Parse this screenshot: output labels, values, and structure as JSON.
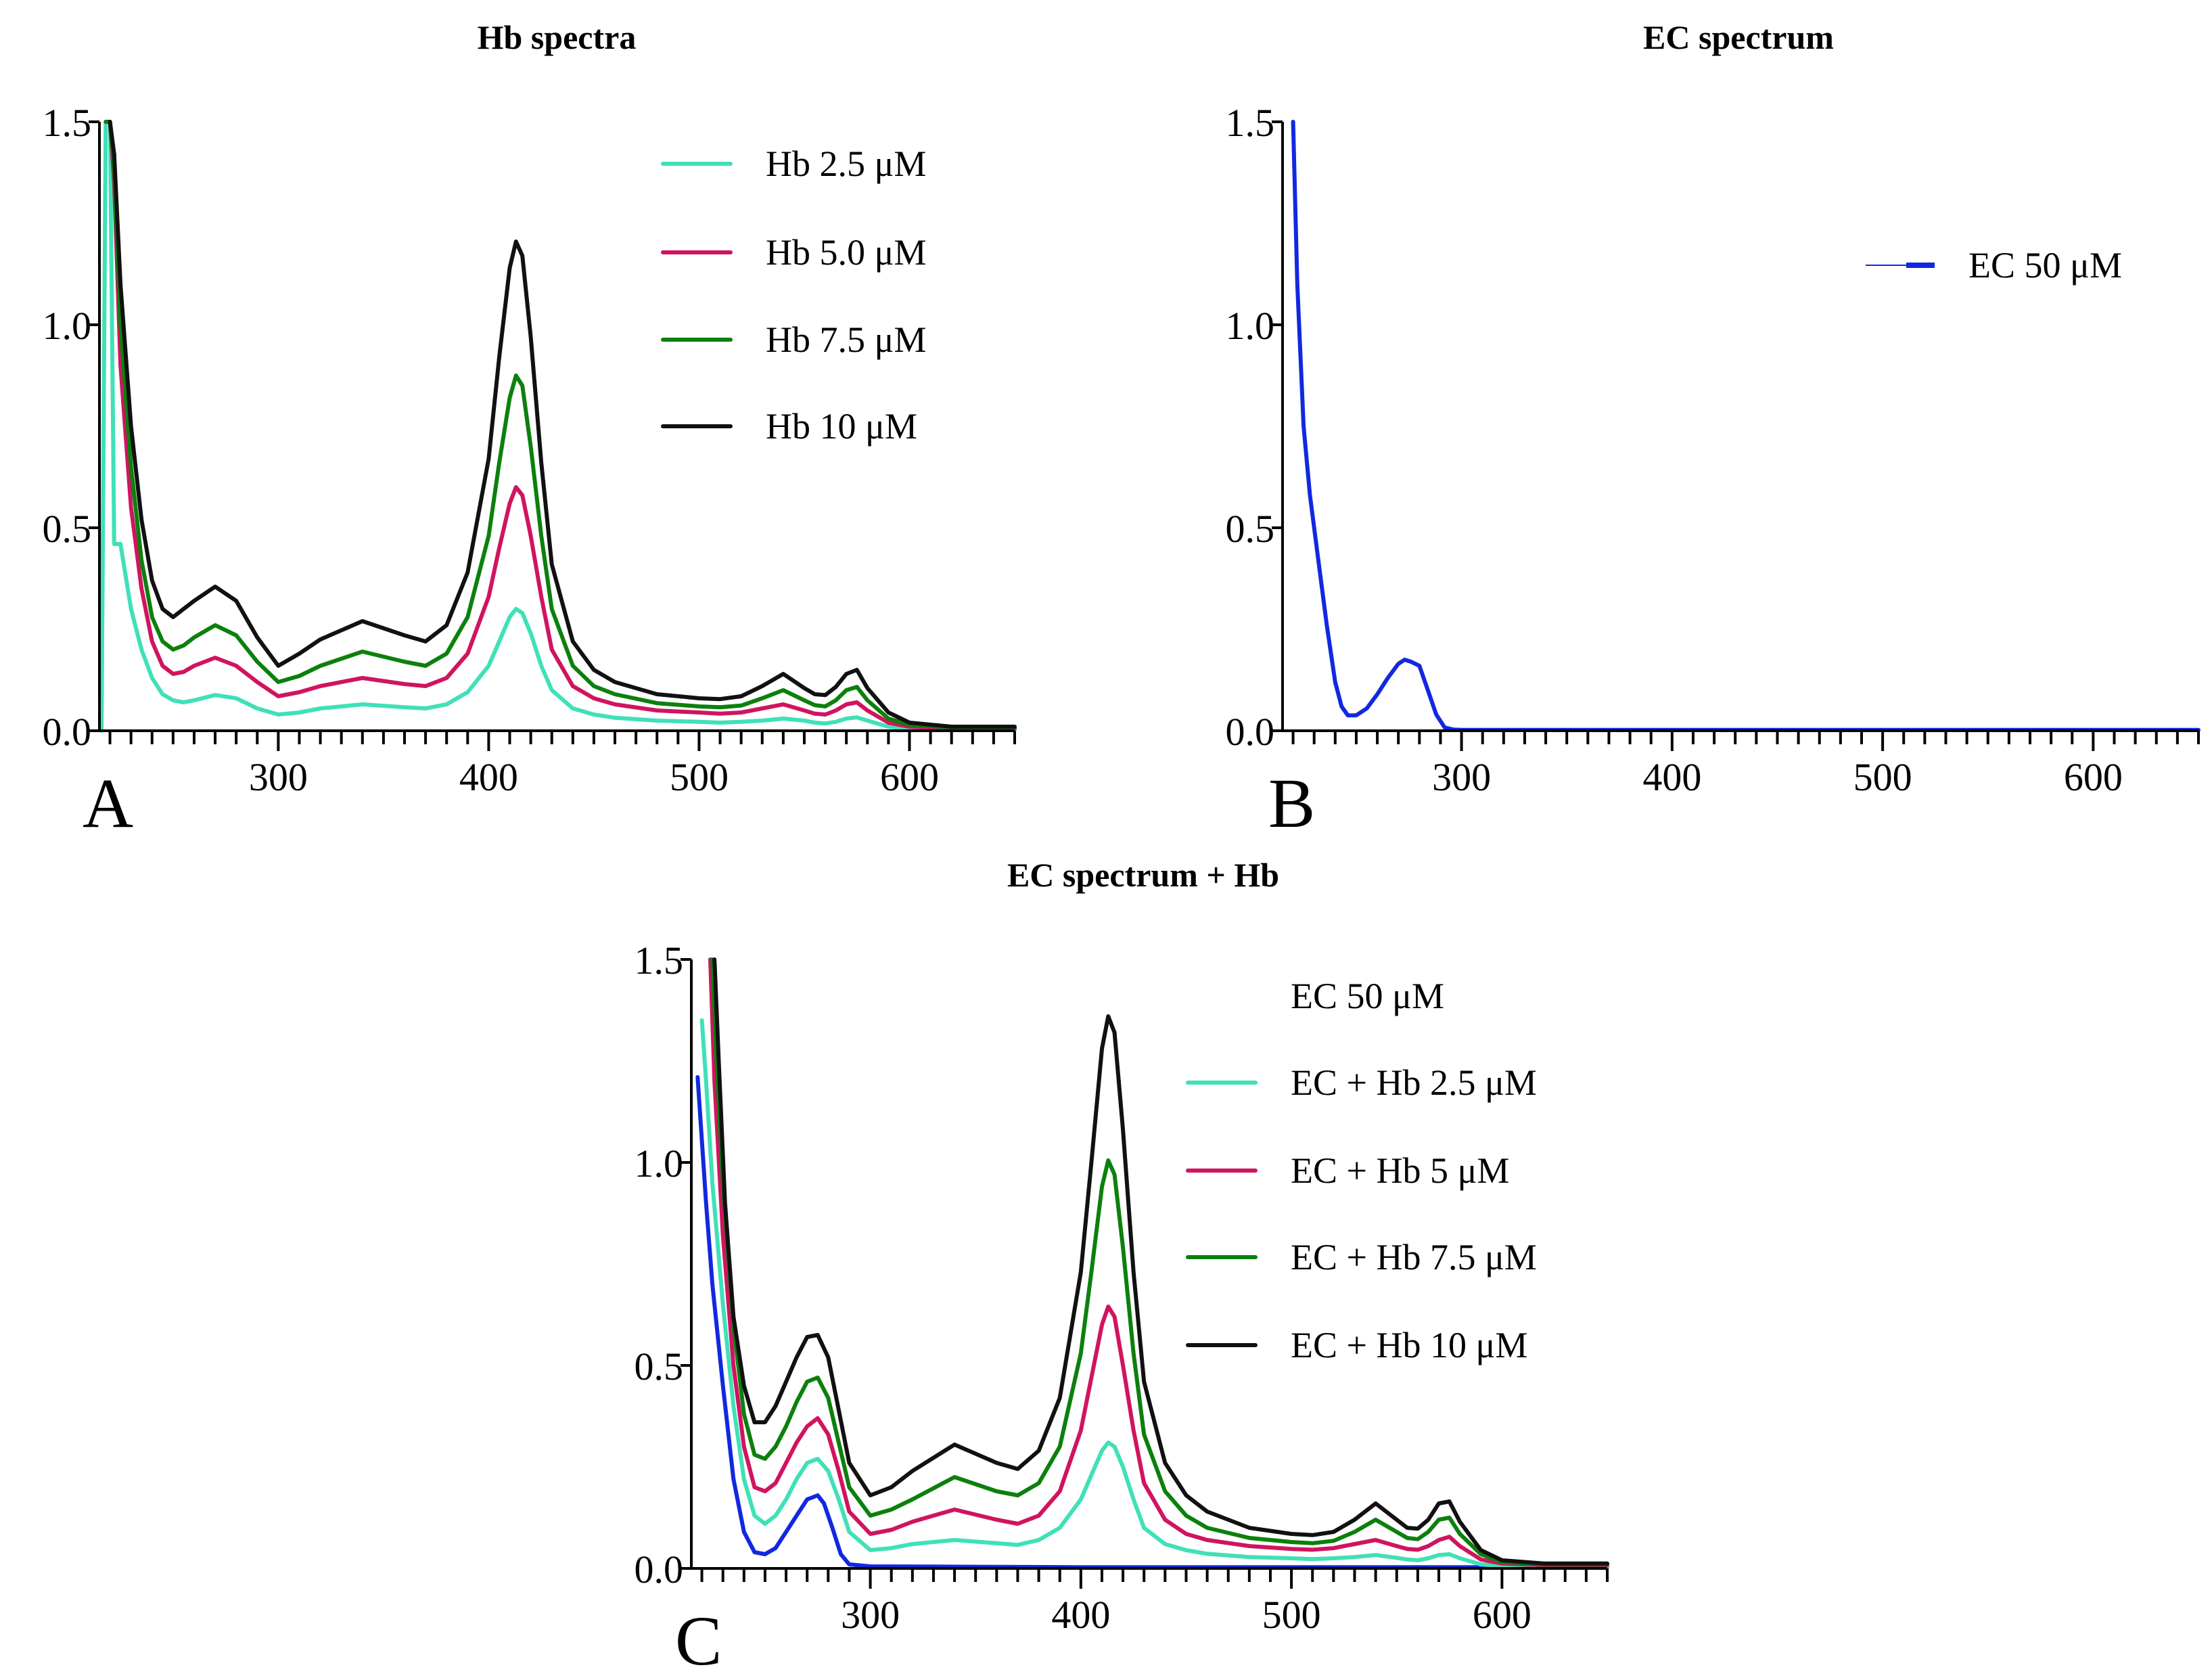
{
  "chart_data": [
    {
      "type": "line",
      "panel_label": "A",
      "title": "Hb spectra",
      "xlabel": "",
      "ylabel": "",
      "xlim": [
        215,
        650
      ],
      "ylim": [
        0,
        1.5
      ],
      "x_ticks": [
        300,
        400,
        500,
        600
      ],
      "y_ticks": [
        0.0,
        0.5,
        1.0,
        1.5
      ],
      "y_tick_labels": [
        "0.0",
        "0.5",
        "1.0",
        "1.5"
      ],
      "legend_position": "top-right",
      "series": [
        {
          "name": "Hb 2.5 μM",
          "color": "#40e0b8",
          "x": [
            216,
            218,
            220,
            222,
            225,
            230,
            235,
            240,
            245,
            250,
            255,
            260,
            270,
            280,
            290,
            300,
            310,
            320,
            340,
            360,
            370,
            380,
            390,
            400,
            405,
            410,
            413,
            416,
            420,
            425,
            430,
            440,
            450,
            460,
            480,
            500,
            510,
            520,
            530,
            540,
            550,
            555,
            560,
            565,
            570,
            575,
            580,
            590,
            600,
            620,
            650
          ],
          "y": [
            0.0,
            1.5,
            1.5,
            0.46,
            0.46,
            0.3,
            0.2,
            0.13,
            0.09,
            0.075,
            0.07,
            0.075,
            0.088,
            0.08,
            0.055,
            0.04,
            0.045,
            0.055,
            0.065,
            0.058,
            0.055,
            0.065,
            0.095,
            0.16,
            0.22,
            0.28,
            0.3,
            0.29,
            0.24,
            0.16,
            0.1,
            0.055,
            0.04,
            0.032,
            0.025,
            0.022,
            0.02,
            0.022,
            0.025,
            0.03,
            0.025,
            0.02,
            0.018,
            0.022,
            0.03,
            0.033,
            0.025,
            0.01,
            0.005,
            0.003,
            0.003
          ]
        },
        {
          "name": "Hb 5.0  μM",
          "color": "#d0145f",
          "x": [
            218,
            220,
            222,
            225,
            230,
            235,
            240,
            245,
            250,
            255,
            260,
            270,
            280,
            290,
            300,
            310,
            320,
            340,
            360,
            370,
            380,
            390,
            400,
            405,
            410,
            413,
            416,
            420,
            425,
            430,
            440,
            450,
            460,
            480,
            500,
            510,
            520,
            530,
            540,
            550,
            555,
            560,
            565,
            570,
            575,
            580,
            590,
            600,
            620,
            650
          ],
          "y": [
            1.5,
            1.5,
            1.35,
            0.9,
            0.55,
            0.35,
            0.22,
            0.16,
            0.14,
            0.145,
            0.16,
            0.18,
            0.16,
            0.12,
            0.085,
            0.095,
            0.11,
            0.13,
            0.115,
            0.11,
            0.13,
            0.19,
            0.33,
            0.45,
            0.56,
            0.6,
            0.58,
            0.48,
            0.33,
            0.2,
            0.11,
            0.08,
            0.065,
            0.05,
            0.045,
            0.042,
            0.045,
            0.055,
            0.065,
            0.05,
            0.042,
            0.04,
            0.05,
            0.065,
            0.07,
            0.05,
            0.02,
            0.01,
            0.005,
            0.005
          ]
        },
        {
          "name": "Hb 7.5  μM",
          "color": "#0c800c",
          "x": [
            218,
            220,
            222,
            225,
            230,
            235,
            240,
            245,
            250,
            255,
            260,
            270,
            280,
            290,
            300,
            310,
            320,
            340,
            360,
            370,
            380,
            390,
            400,
            405,
            410,
            413,
            416,
            420,
            425,
            430,
            440,
            450,
            460,
            480,
            500,
            510,
            520,
            530,
            540,
            550,
            555,
            560,
            565,
            570,
            575,
            580,
            590,
            600,
            620,
            650
          ],
          "y": [
            1.5,
            1.5,
            1.38,
            1.0,
            0.65,
            0.42,
            0.28,
            0.22,
            0.2,
            0.21,
            0.23,
            0.26,
            0.235,
            0.17,
            0.12,
            0.135,
            0.16,
            0.195,
            0.17,
            0.16,
            0.19,
            0.28,
            0.48,
            0.66,
            0.82,
            0.875,
            0.85,
            0.7,
            0.48,
            0.3,
            0.16,
            0.11,
            0.09,
            0.068,
            0.06,
            0.058,
            0.062,
            0.08,
            0.1,
            0.075,
            0.063,
            0.06,
            0.075,
            0.1,
            0.108,
            0.075,
            0.03,
            0.015,
            0.008,
            0.008
          ]
        },
        {
          "name": "Hb 10  μM",
          "color": "#111111",
          "x": [
            220,
            222,
            225,
            230,
            235,
            240,
            245,
            250,
            255,
            260,
            270,
            280,
            290,
            300,
            310,
            320,
            340,
            360,
            370,
            380,
            390,
            400,
            405,
            410,
            413,
            416,
            420,
            425,
            430,
            440,
            450,
            460,
            480,
            500,
            510,
            520,
            530,
            540,
            550,
            555,
            560,
            565,
            570,
            575,
            580,
            590,
            600,
            620,
            650
          ],
          "y": [
            1.5,
            1.42,
            1.1,
            0.75,
            0.52,
            0.37,
            0.3,
            0.28,
            0.3,
            0.32,
            0.355,
            0.32,
            0.23,
            0.16,
            0.19,
            0.225,
            0.27,
            0.235,
            0.22,
            0.26,
            0.39,
            0.67,
            0.92,
            1.14,
            1.205,
            1.17,
            0.97,
            0.66,
            0.41,
            0.22,
            0.15,
            0.12,
            0.09,
            0.08,
            0.078,
            0.085,
            0.11,
            0.14,
            0.105,
            0.09,
            0.088,
            0.108,
            0.14,
            0.15,
            0.105,
            0.045,
            0.02,
            0.01,
            0.01
          ]
        }
      ]
    },
    {
      "type": "line",
      "panel_label": "B",
      "title": "EC spectrum",
      "xlabel": "",
      "ylabel": "",
      "xlim": [
        215,
        650
      ],
      "ylim": [
        0,
        1.5
      ],
      "x_ticks": [
        300,
        400,
        500,
        600
      ],
      "y_ticks": [
        0.0,
        0.5,
        1.0,
        1.5
      ],
      "y_tick_labels": [
        "0.0",
        "0.5",
        "1.0",
        "1.5"
      ],
      "legend_position": "top-right",
      "series": [
        {
          "name": "EC 50 μM",
          "color": "#1228e0",
          "x": [
            220,
            222,
            225,
            228,
            232,
            236,
            240,
            243,
            246,
            250,
            255,
            260,
            265,
            270,
            273,
            276,
            280,
            284,
            288,
            292,
            296,
            300,
            350,
            400,
            450,
            500,
            550,
            600,
            650
          ],
          "y": [
            1.5,
            1.1,
            0.75,
            0.58,
            0.42,
            0.26,
            0.12,
            0.06,
            0.038,
            0.038,
            0.055,
            0.09,
            0.13,
            0.165,
            0.175,
            0.17,
            0.16,
            0.1,
            0.04,
            0.008,
            0.003,
            0.002,
            0.002,
            0.002,
            0.002,
            0.002,
            0.002,
            0.002,
            0.002
          ]
        }
      ]
    },
    {
      "type": "line",
      "panel_label": "C",
      "title": "EC spectrum + Hb",
      "xlabel": "",
      "ylabel": "",
      "xlim": [
        215,
        650
      ],
      "ylim": [
        0,
        1.5
      ],
      "x_ticks": [
        300,
        400,
        500,
        600
      ],
      "y_ticks": [
        0.0,
        0.5,
        1.0,
        1.5
      ],
      "y_tick_labels": [
        "0.0",
        "0.5",
        "1.0",
        "1.5"
      ],
      "legend_position": "top-right",
      "series": [
        {
          "name": "EC 50 μM",
          "color": "#1228e0",
          "hide_in_legend": true,
          "x": [
            218,
            222,
            225,
            230,
            235,
            240,
            245,
            250,
            255,
            260,
            265,
            270,
            275,
            278,
            282,
            286,
            290,
            300,
            350,
            400,
            450,
            500,
            550,
            600,
            650
          ],
          "y": [
            1.21,
            0.9,
            0.7,
            0.45,
            0.22,
            0.09,
            0.04,
            0.035,
            0.05,
            0.09,
            0.13,
            0.17,
            0.18,
            0.16,
            0.1,
            0.035,
            0.01,
            0.005,
            0.004,
            0.003,
            0.003,
            0.003,
            0.003,
            0.003,
            0.003
          ]
        },
        {
          "name": "EC + Hb 2.5 μM",
          "color": "#40e0b8",
          "x": [
            220,
            222,
            225,
            230,
            235,
            240,
            245,
            250,
            255,
            260,
            265,
            270,
            275,
            280,
            285,
            290,
            300,
            310,
            320,
            340,
            360,
            370,
            380,
            390,
            400,
            405,
            410,
            413,
            416,
            420,
            425,
            430,
            440,
            450,
            460,
            480,
            500,
            510,
            520,
            530,
            540,
            550,
            555,
            560,
            565,
            570,
            575,
            580,
            590,
            600,
            620,
            650
          ],
          "y": [
            1.35,
            1.2,
            0.95,
            0.65,
            0.4,
            0.22,
            0.13,
            0.11,
            0.13,
            0.17,
            0.22,
            0.26,
            0.27,
            0.24,
            0.17,
            0.09,
            0.045,
            0.05,
            0.06,
            0.07,
            0.062,
            0.058,
            0.07,
            0.1,
            0.17,
            0.23,
            0.29,
            0.31,
            0.3,
            0.25,
            0.17,
            0.1,
            0.06,
            0.045,
            0.036,
            0.028,
            0.025,
            0.023,
            0.025,
            0.028,
            0.033,
            0.026,
            0.022,
            0.02,
            0.025,
            0.033,
            0.035,
            0.025,
            0.01,
            0.006,
            0.004,
            0.004
          ]
        },
        {
          "name": "EC + Hb 5 μM",
          "color": "#d0145f",
          "x": [
            224,
            226,
            230,
            235,
            240,
            245,
            250,
            255,
            260,
            265,
            270,
            275,
            280,
            285,
            290,
            300,
            310,
            320,
            340,
            360,
            370,
            380,
            390,
            400,
            405,
            410,
            413,
            416,
            420,
            425,
            430,
            440,
            450,
            460,
            480,
            500,
            510,
            520,
            530,
            540,
            550,
            555,
            560,
            565,
            570,
            575,
            580,
            590,
            600,
            620,
            650
          ],
          "y": [
            1.5,
            1.2,
            0.82,
            0.5,
            0.3,
            0.2,
            0.19,
            0.21,
            0.26,
            0.31,
            0.35,
            0.37,
            0.33,
            0.24,
            0.14,
            0.085,
            0.095,
            0.115,
            0.145,
            0.12,
            0.11,
            0.13,
            0.19,
            0.34,
            0.47,
            0.6,
            0.645,
            0.62,
            0.5,
            0.34,
            0.21,
            0.12,
            0.085,
            0.07,
            0.055,
            0.048,
            0.046,
            0.05,
            0.06,
            0.07,
            0.055,
            0.048,
            0.046,
            0.055,
            0.07,
            0.078,
            0.055,
            0.022,
            0.012,
            0.008,
            0.008
          ]
        },
        {
          "name": "EC + Hb 7.5 μM",
          "color": "#0c800c",
          "x": [
            225,
            227,
            230,
            235,
            240,
            245,
            250,
            255,
            260,
            265,
            270,
            275,
            280,
            285,
            290,
            300,
            310,
            320,
            340,
            360,
            370,
            380,
            390,
            400,
            405,
            410,
            413,
            416,
            420,
            425,
            430,
            440,
            450,
            460,
            480,
            500,
            510,
            520,
            530,
            540,
            550,
            555,
            560,
            565,
            570,
            575,
            580,
            590,
            600,
            620,
            650
          ],
          "y": [
            1.5,
            1.25,
            0.95,
            0.6,
            0.38,
            0.28,
            0.27,
            0.3,
            0.35,
            0.41,
            0.46,
            0.47,
            0.42,
            0.31,
            0.2,
            0.13,
            0.145,
            0.17,
            0.225,
            0.19,
            0.18,
            0.21,
            0.3,
            0.53,
            0.73,
            0.94,
            1.005,
            0.97,
            0.79,
            0.53,
            0.33,
            0.19,
            0.13,
            0.1,
            0.075,
            0.065,
            0.062,
            0.068,
            0.09,
            0.12,
            0.09,
            0.075,
            0.072,
            0.09,
            0.12,
            0.125,
            0.085,
            0.035,
            0.016,
            0.01,
            0.01
          ]
        },
        {
          "name": "EC + Hb 10 μM",
          "color": "#111111",
          "x": [
            226,
            228,
            231,
            235,
            240,
            245,
            250,
            255,
            260,
            265,
            270,
            275,
            280,
            285,
            290,
            300,
            310,
            320,
            340,
            360,
            370,
            380,
            390,
            400,
            405,
            410,
            413,
            416,
            420,
            425,
            430,
            440,
            450,
            460,
            480,
            500,
            510,
            520,
            530,
            540,
            550,
            555,
            560,
            565,
            570,
            575,
            580,
            590,
            600,
            620,
            650
          ],
          "y": [
            1.5,
            1.25,
            0.9,
            0.62,
            0.45,
            0.36,
            0.36,
            0.4,
            0.46,
            0.52,
            0.57,
            0.575,
            0.52,
            0.39,
            0.26,
            0.18,
            0.2,
            0.24,
            0.305,
            0.26,
            0.245,
            0.29,
            0.42,
            0.73,
            1.0,
            1.28,
            1.36,
            1.32,
            1.08,
            0.73,
            0.46,
            0.26,
            0.18,
            0.14,
            0.1,
            0.085,
            0.082,
            0.09,
            0.12,
            0.16,
            0.12,
            0.1,
            0.098,
            0.12,
            0.16,
            0.165,
            0.115,
            0.045,
            0.02,
            0.012,
            0.012
          ]
        }
      ]
    }
  ]
}
